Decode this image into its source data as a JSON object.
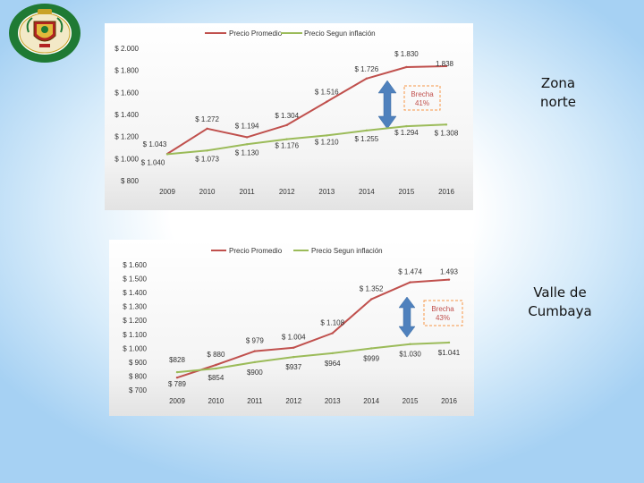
{
  "logo": {
    "lettering": "CURE · UNIVERSIDAD"
  },
  "chart_data": [
    {
      "type": "line",
      "categories": [
        "2009",
        "2010",
        "2011",
        "2012",
        "2013",
        "2014",
        "2015",
        "2016"
      ],
      "ylim": [
        800,
        2000
      ],
      "yticks": [
        "$ 2.000",
        "$ 1.800",
        "$ 1.600",
        "$ 1.400",
        "$ 1.200",
        "$ 1.000",
        "$ 800"
      ],
      "ytick_values": [
        2000,
        1800,
        1600,
        1400,
        1200,
        1000,
        800
      ],
      "grid": false,
      "legend": "top",
      "series": [
        {
          "name": "Precio Promedio",
          "color": "#c0504d",
          "values": [
            1043,
            1272,
            1194,
            1304,
            1516,
            1726,
            1830,
            1838
          ],
          "labels": [
            "$ 1.043",
            "$ 1.272",
            "$ 1.194",
            "$ 1.304",
            "$ 1.516",
            "$ 1.726",
            "$ 1.830",
            "1.838"
          ]
        },
        {
          "name": "Precio Segun inflación",
          "color": "#9bbb59",
          "values": [
            1040,
            1073,
            1130,
            1176,
            1210,
            1255,
            1294,
            1308
          ],
          "labels": [
            "$ 1.040",
            "$ 1.073",
            "$ 1.130",
            "$ 1.176",
            "$ 1.210",
            "$ 1.255",
            "$ 1.294",
            "$ 1.308"
          ]
        }
      ],
      "annotation": {
        "title": "Brecha",
        "value": "41%",
        "arrow_color": "#4f81bd",
        "box_color": "#f79646"
      }
    },
    {
      "type": "line",
      "categories": [
        "2009",
        "2010",
        "2011",
        "2012",
        "2013",
        "2014",
        "2015",
        "2016"
      ],
      "ylim": [
        700,
        1600
      ],
      "yticks": [
        "$ 1.600",
        "$ 1.500",
        "$ 1.400",
        "$ 1.300",
        "$ 1.200",
        "$ 1.100",
        "$ 1.000",
        "$ 900",
        "$ 800",
        "$ 700"
      ],
      "ytick_values": [
        1600,
        1500,
        1400,
        1300,
        1200,
        1100,
        1000,
        900,
        800,
        700
      ],
      "grid": false,
      "legend": "top",
      "series": [
        {
          "name": "Precio Promedio",
          "color": "#c0504d",
          "values": [
            789,
            880,
            979,
            1004,
            1108,
            1352,
            1474,
            1493
          ],
          "labels": [
            "$ 789",
            "$ 880",
            "$ 979",
            "$ 1.004",
            "$ 1.108",
            "$ 1.352",
            "$ 1.474",
            "1.493"
          ]
        },
        {
          "name": "Precio Segun inflación",
          "color": "#9bbb59",
          "values": [
            828,
            854,
            900,
            937,
            964,
            999,
            1030,
            1041
          ],
          "labels": [
            "$828",
            "$854",
            "$900",
            "$937",
            "$964",
            "$999",
            "$1.030",
            "$1.041"
          ]
        }
      ],
      "annotation": {
        "title": "Brecha",
        "value": "43%",
        "arrow_color": "#4f81bd",
        "box_color": "#f79646"
      }
    }
  ],
  "side_labels": [
    {
      "line1": "Zona",
      "line2": "norte"
    },
    {
      "line1": "Valle de",
      "line2": "Cumbaya"
    }
  ]
}
